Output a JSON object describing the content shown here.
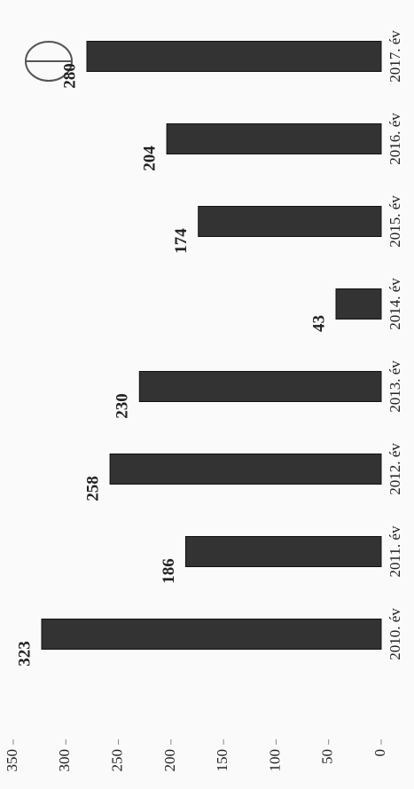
{
  "chart_data": {
    "type": "bar",
    "categories": [
      "2010. év",
      "2011. év",
      "2012. év",
      "2013. év",
      "2014. év",
      "2015. év",
      "2016. év",
      "2017. év"
    ],
    "values": [
      323,
      186,
      258,
      230,
      43,
      174,
      204,
      280
    ],
    "color": "#333333",
    "ylim": [
      0,
      350
    ],
    "yticks": [
      0,
      50,
      100,
      150,
      200,
      250,
      300,
      350
    ]
  }
}
